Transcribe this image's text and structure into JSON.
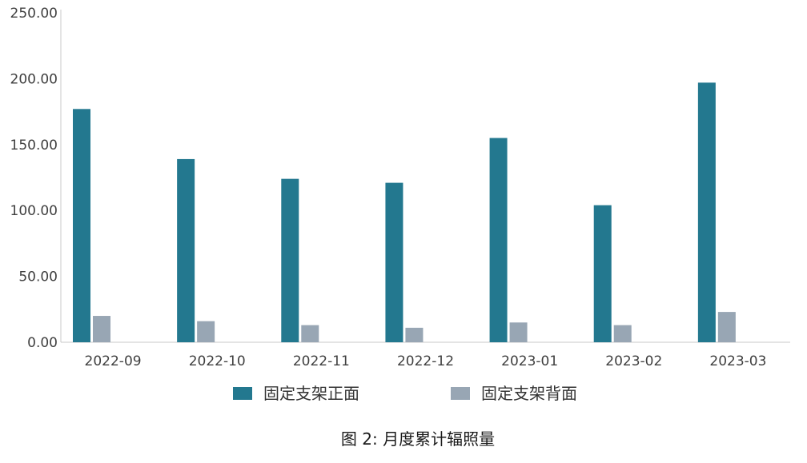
{
  "chart_data": {
    "type": "bar",
    "categories": [
      "2022-09",
      "2022-10",
      "2022-11",
      "2022-12",
      "2023-01",
      "2023-02",
      "2023-03"
    ],
    "series": [
      {
        "name": "固定支架正面",
        "color": "#23788f",
        "values": [
          177,
          139,
          124,
          121,
          155,
          104,
          197
        ]
      },
      {
        "name": "固定支架背面",
        "color": "#98a6b4",
        "values": [
          20,
          16,
          13,
          11,
          15,
          13,
          23
        ]
      }
    ],
    "ylim": [
      0,
      250
    ],
    "yticks": [
      "0.00",
      "50.00",
      "100.00",
      "150.00",
      "200.00",
      "250.00"
    ],
    "legend_position": "bottom",
    "grid": false
  },
  "caption": "图 2: 月度累计辐照量"
}
